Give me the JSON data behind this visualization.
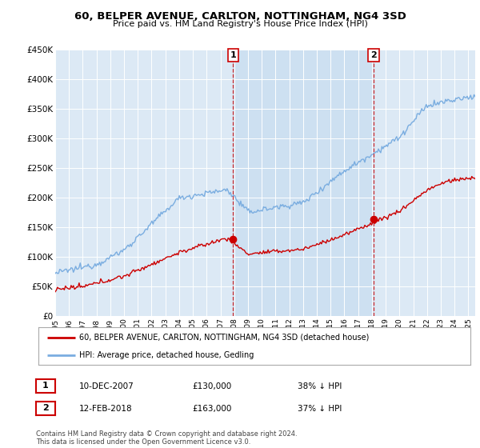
{
  "title": "60, BELPER AVENUE, CARLTON, NOTTINGHAM, NG4 3SD",
  "subtitle": "Price paid vs. HM Land Registry's House Price Index (HPI)",
  "ylabel_ticks": [
    "£0",
    "£50K",
    "£100K",
    "£150K",
    "£200K",
    "£250K",
    "£300K",
    "£350K",
    "£400K",
    "£450K"
  ],
  "ylim": [
    0,
    450000
  ],
  "xlim_start": 1995.0,
  "xlim_end": 2025.5,
  "legend_line1": "60, BELPER AVENUE, CARLTON, NOTTINGHAM, NG4 3SD (detached house)",
  "legend_line2": "HPI: Average price, detached house, Gedling",
  "annotation1_label": "1",
  "annotation1_date": "10-DEC-2007",
  "annotation1_price": "£130,000",
  "annotation1_hpi": "38% ↓ HPI",
  "annotation2_label": "2",
  "annotation2_date": "12-FEB-2018",
  "annotation2_price": "£163,000",
  "annotation2_hpi": "37% ↓ HPI",
  "footer": "Contains HM Land Registry data © Crown copyright and database right 2024.\nThis data is licensed under the Open Government Licence v3.0.",
  "hpi_color": "#7aade0",
  "price_color": "#cc0000",
  "sale1_x": 2007.92,
  "sale1_y": 130000,
  "sale2_x": 2018.12,
  "sale2_y": 163000,
  "shade_color": "#c8ddf0",
  "background_color": "#dce9f5",
  "plot_bg_color": "#dce9f5"
}
